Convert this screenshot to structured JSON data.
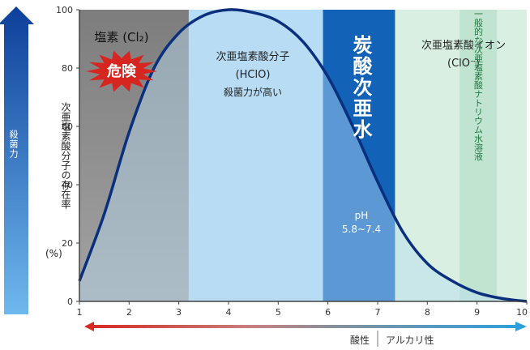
{
  "colors": {
    "gray_region": "#8e8e8e",
    "light_blue": "#b7dcf5",
    "dark_blue": "#1262b8",
    "curve": "#0a2f7c",
    "green_light": "#d8efe1",
    "green_band": "#bfe2cf",
    "danger_red": "#d7261f"
  },
  "left_arrow_label": "殺菌力",
  "y_axis_label": "次亜塩素酸分子の存在率",
  "y_axis_unit": "(%)",
  "danger_badge": "危険",
  "bottom_arrow": {
    "acid_label": "酸性",
    "alkali_label": "アルカリ性"
  },
  "chart_data": {
    "type": "area",
    "xlim": [
      1,
      10
    ],
    "ylim": [
      0,
      100
    ],
    "x_ticks": [
      1,
      2,
      3,
      4,
      5,
      6,
      7,
      8,
      9,
      10
    ],
    "y_ticks": [
      0,
      20,
      40,
      60,
      80,
      100
    ],
    "series": [
      {
        "name": "次亜塩素酸分子 (HClO)",
        "x": [
          1.0,
          1.5,
          2.0,
          2.5,
          3.0,
          3.5,
          4.0,
          4.5,
          5.0,
          5.5,
          6.0,
          6.5,
          7.0,
          7.5,
          8.0,
          8.5,
          9.0,
          9.5,
          10.0
        ],
        "y": [
          7,
          30,
          58,
          80,
          92,
          98,
          100,
          99,
          96,
          89,
          77,
          60,
          41,
          24,
          13,
          7,
          3,
          1,
          0
        ]
      }
    ],
    "regions": [
      {
        "label": "塩素 (Cl₂)",
        "from": 1,
        "to": 3.2
      },
      {
        "label": "次亜塩素酸分子",
        "sublabel": "(HClO)",
        "note": "殺菌力が高い",
        "from": 3.2,
        "to": 5.9
      },
      {
        "label": "炭酸次亜水",
        "sublabel": "pH 5.8~7.4",
        "from": 5.9,
        "to": 7.35
      },
      {
        "label": "次亜塩素酸イオン",
        "sublabel": "(ClO⁻)",
        "from": 7.35,
        "to": 10
      },
      {
        "label": "一般的な次亜塩素酸ナトリウム水溶液",
        "from": 8.65,
        "to": 9.4
      }
    ]
  },
  "labels": {
    "cl2": "塩素 (Cl₂)",
    "hclo_title": "次亜塩素酸分子",
    "hclo_formula": "(HClO)",
    "hclo_note": "殺菌力が高い",
    "tansan_title": "炭酸次亜水",
    "tansan_ph": "pH",
    "tansan_range": "5.8~7.4",
    "clo_title": "次亜塩素酸イオン",
    "clo_formula": "(ClO⁻)",
    "naclo_text": "一般的な次亜塩素酸ナトリウム水溶液"
  }
}
